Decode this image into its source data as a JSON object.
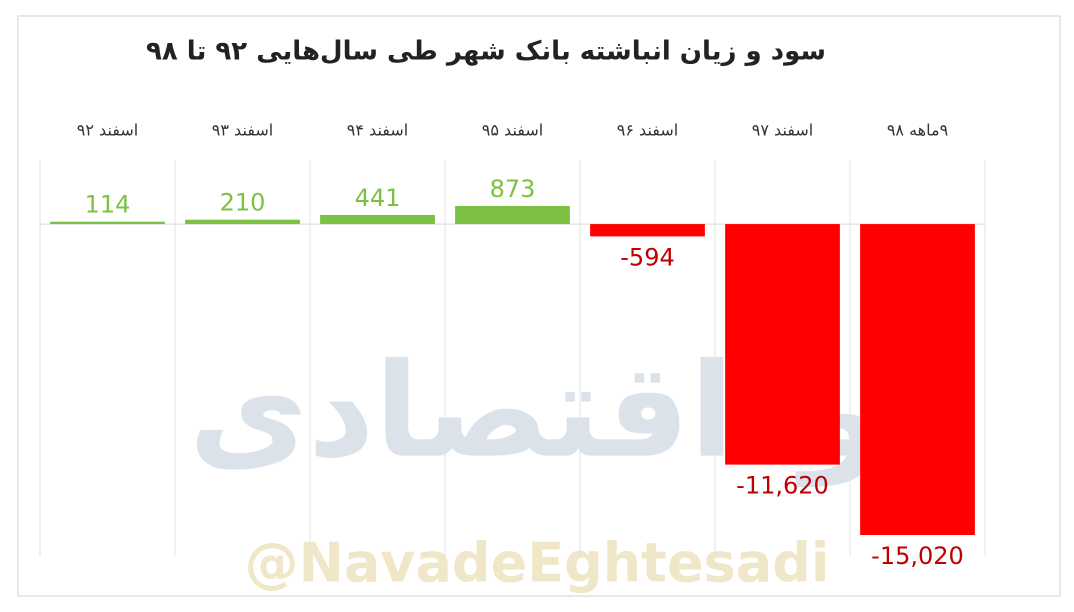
{
  "chart_data": {
    "type": "bar",
    "title": "سود و زیان انباشته بانک شهر طی سال‌هایی ۹۲ تا ۹۸",
    "categories": [
      "اسفند ۹۲",
      "اسفند ۹۳",
      "اسفند ۹۴",
      "اسفند ۹۵",
      "اسفند ۹۶",
      "اسفند ۹۷",
      "۹ماهه ۹۸"
    ],
    "values": [
      114,
      210,
      441,
      873,
      -594,
      -11620,
      -15020
    ],
    "value_labels": [
      "114",
      "210",
      "441",
      "873",
      "-594",
      "-11,620",
      "-15,020"
    ],
    "positive_color": "#7cc142",
    "negative_color": "#ff0000",
    "watermark": "@NavadeEghtesadi",
    "logo_text": "نوداقتصادی"
  }
}
